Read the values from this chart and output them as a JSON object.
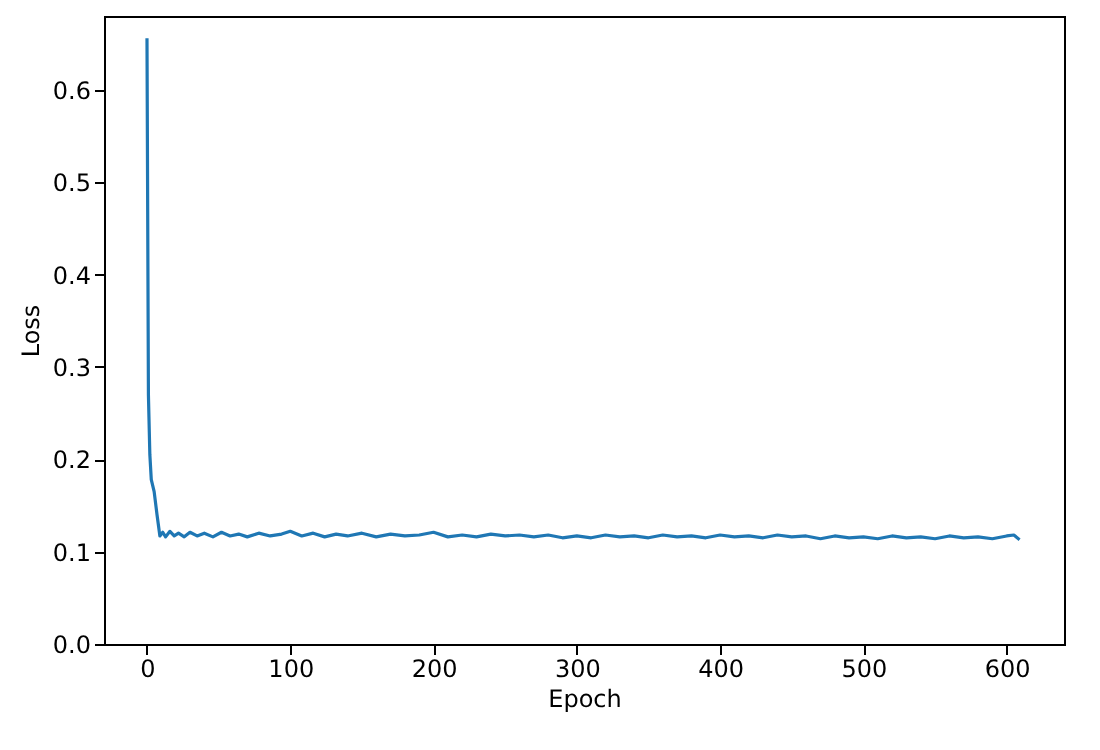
{
  "chart_data": {
    "type": "line",
    "xlabel": "Epoch",
    "ylabel": "Loss",
    "xlim": [
      -30,
      640
    ],
    "ylim": [
      0,
      0.68
    ],
    "xticks": [
      0,
      100,
      200,
      300,
      400,
      500,
      600
    ],
    "yticks": [
      {
        "value": 0,
        "label": "0.0"
      },
      0.1,
      0.2,
      0.3,
      0.4,
      0.5,
      0.6
    ],
    "grid": false,
    "marker": "none",
    "line_style": "solid",
    "series": [
      {
        "color": "#1f77b4",
        "x": [
          0,
          1,
          2,
          3,
          5,
          7,
          9,
          11,
          13,
          16,
          19,
          22,
          26,
          30,
          35,
          40,
          46,
          52,
          58,
          64,
          70,
          78,
          86,
          94,
          100,
          108,
          116,
          124,
          132,
          140,
          150,
          160,
          170,
          180,
          190,
          200,
          210,
          220,
          230,
          240,
          250,
          260,
          270,
          280,
          290,
          300,
          310,
          320,
          330,
          340,
          350,
          360,
          370,
          380,
          390,
          400,
          410,
          420,
          430,
          440,
          450,
          460,
          470,
          480,
          490,
          500,
          510,
          520,
          530,
          540,
          550,
          560,
          570,
          580,
          590,
          600,
          605,
          609
        ],
        "values": [
          0.656,
          0.27,
          0.205,
          0.178,
          0.165,
          0.14,
          0.117,
          0.121,
          0.116,
          0.122,
          0.117,
          0.12,
          0.116,
          0.121,
          0.117,
          0.12,
          0.116,
          0.121,
          0.117,
          0.119,
          0.116,
          0.12,
          0.117,
          0.119,
          0.122,
          0.117,
          0.12,
          0.116,
          0.119,
          0.117,
          0.12,
          0.116,
          0.119,
          0.117,
          0.118,
          0.121,
          0.116,
          0.118,
          0.116,
          0.119,
          0.117,
          0.118,
          0.116,
          0.118,
          0.115,
          0.117,
          0.115,
          0.118,
          0.116,
          0.117,
          0.115,
          0.118,
          0.116,
          0.117,
          0.115,
          0.118,
          0.116,
          0.117,
          0.115,
          0.118,
          0.116,
          0.117,
          0.114,
          0.117,
          0.115,
          0.116,
          0.114,
          0.117,
          0.115,
          0.116,
          0.114,
          0.117,
          0.115,
          0.116,
          0.114,
          0.117,
          0.118,
          0.113
        ]
      }
    ]
  }
}
